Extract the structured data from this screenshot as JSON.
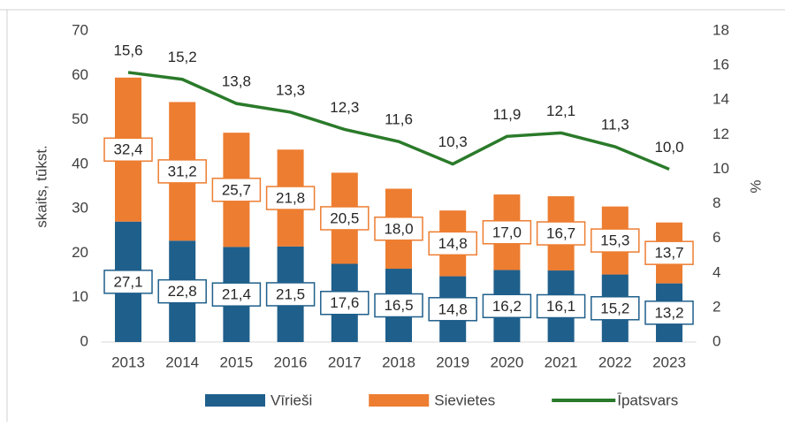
{
  "chart_data": {
    "type": "bar-line",
    "categories": [
      "2013",
      "2014",
      "2015",
      "2016",
      "2017",
      "2018",
      "2019",
      "2020",
      "2021",
      "2022",
      "2023"
    ],
    "ylabel": "skaits, tūkst.",
    "y2label": "%",
    "ylim": [
      0,
      70
    ],
    "yticks": [
      0,
      10,
      20,
      30,
      40,
      50,
      60,
      70
    ],
    "y2lim": [
      0,
      18
    ],
    "y2ticks": [
      0,
      2,
      4,
      6,
      8,
      10,
      12,
      14,
      16,
      18
    ],
    "legend": "bottom",
    "series": [
      {
        "name": "Vīrieši",
        "type": "bar",
        "color": "#1f5f8b",
        "values": [
          27.1,
          22.8,
          21.4,
          21.5,
          17.6,
          16.5,
          14.8,
          16.2,
          16.1,
          15.2,
          13.2
        ],
        "value_labels": [
          "27,1",
          "22,8",
          "21,4",
          "21,5",
          "17,6",
          "16,5",
          "14,8",
          "16,2",
          "16,1",
          "15,2",
          "13,2"
        ]
      },
      {
        "name": "Sievietes",
        "type": "bar",
        "color": "#ed7d31",
        "values": [
          32.4,
          31.2,
          25.7,
          21.8,
          20.5,
          18.0,
          14.8,
          17.0,
          16.7,
          15.3,
          13.7
        ],
        "value_labels": [
          "32,4",
          "31,2",
          "25,7",
          "21,8",
          "20,5",
          "18,0",
          "14,8",
          "17,0",
          "16,7",
          "15,3",
          "13,7"
        ]
      },
      {
        "name": "Īpatsvars",
        "type": "line",
        "axis": "y2",
        "color": "#2a7a2a",
        "values": [
          15.6,
          15.2,
          13.8,
          13.3,
          12.3,
          11.6,
          10.3,
          11.9,
          12.1,
          11.3,
          10.0
        ],
        "value_labels": [
          "15,6",
          "15,2",
          "13,8",
          "13,3",
          "12,3",
          "11,6",
          "10,3",
          "11,9",
          "12,1",
          "11,3",
          "10,0"
        ]
      }
    ]
  }
}
